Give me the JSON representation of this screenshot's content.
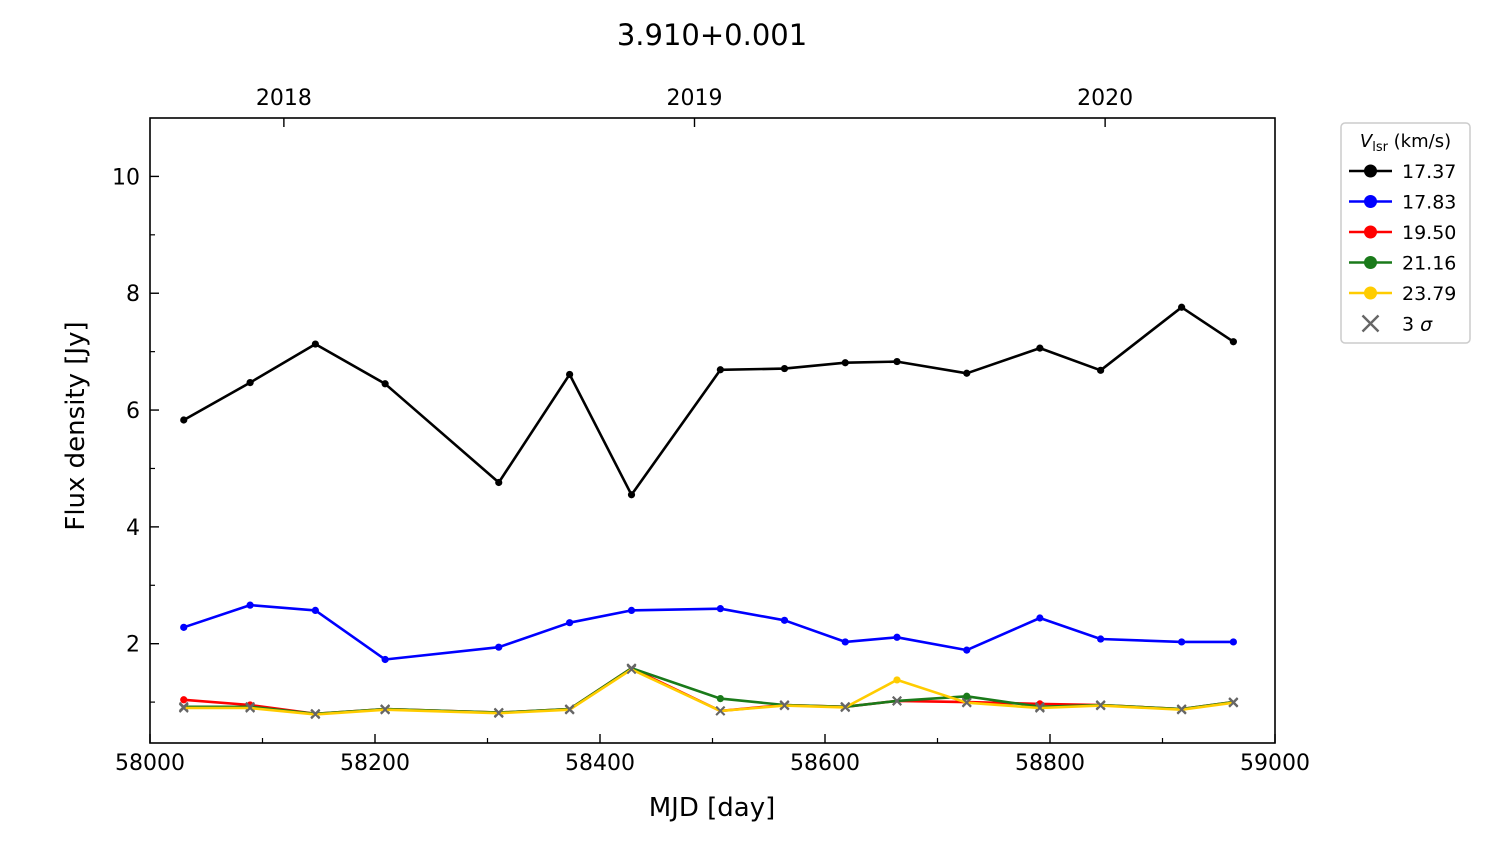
{
  "chart_data": {
    "type": "line",
    "title": "3.910+0.001",
    "xlabel": "MJD [day]",
    "ylabel": "Flux density [Jy]",
    "xlim": [
      58000,
      59000
    ],
    "ylim": [
      0.3,
      11.0
    ],
    "xticks": [
      58000,
      58200,
      58400,
      58600,
      58800,
      59000
    ],
    "xtick_labels": [
      "58000",
      "58200",
      "58400",
      "58600",
      "58800",
      "59000"
    ],
    "yticks": [
      2,
      4,
      6,
      8,
      10
    ],
    "ytick_labels": [
      "2",
      "4",
      "6",
      "8",
      "10"
    ],
    "top_axis": {
      "ticks": [
        58119,
        58484,
        58849
      ],
      "labels": [
        "2018",
        "2019",
        "2020"
      ]
    },
    "grid": false,
    "legend": {
      "placement": "outside-right-top",
      "title_main": "V",
      "title_sub": "lsr",
      "title_rest": " (km/s)",
      "sigma_label_prefix": "3 ",
      "sigma_label_symbol": "σ"
    },
    "x": [
      58030,
      58089,
      58147,
      58209,
      58310,
      58373,
      58428,
      58507,
      58564,
      58618,
      58664,
      58726,
      58791,
      58845,
      58917,
      58963
    ],
    "series": [
      {
        "name": "17.37",
        "color": "#000000",
        "values": [
          5.83,
          6.47,
          7.13,
          6.45,
          4.76,
          6.61,
          4.55,
          6.69,
          6.71,
          6.81,
          6.83,
          6.63,
          7.06,
          6.68,
          7.76,
          7.17
        ],
        "upper_limit": [
          false,
          false,
          false,
          false,
          false,
          false,
          false,
          false,
          false,
          false,
          false,
          false,
          false,
          false,
          false,
          false
        ]
      },
      {
        "name": "17.83",
        "color": "#0000ff",
        "values": [
          2.28,
          2.66,
          2.57,
          1.73,
          1.94,
          2.36,
          2.57,
          2.6,
          2.4,
          2.03,
          2.11,
          1.89,
          2.44,
          2.08,
          2.03,
          2.03
        ],
        "upper_limit": [
          false,
          false,
          false,
          false,
          false,
          false,
          false,
          false,
          false,
          false,
          false,
          false,
          false,
          false,
          false,
          false
        ]
      },
      {
        "name": "19.50",
        "color": "#ff0000",
        "values": [
          1.04,
          0.95,
          0.8,
          0.88,
          0.82,
          0.88,
          1.58,
          0.85,
          0.95,
          0.92,
          1.02,
          1.0,
          0.97,
          0.95,
          0.88,
          1.0
        ],
        "upper_limit": [
          false,
          false,
          true,
          true,
          true,
          true,
          true,
          true,
          true,
          true,
          true,
          true,
          false,
          true,
          true,
          true
        ]
      },
      {
        "name": "21.16",
        "color": "#1a7a1a",
        "values": [
          0.92,
          0.92,
          0.8,
          0.88,
          0.82,
          0.88,
          1.58,
          1.06,
          0.95,
          0.92,
          1.02,
          1.1,
          0.92,
          0.95,
          0.88,
          1.0
        ],
        "upper_limit": [
          true,
          true,
          true,
          true,
          true,
          true,
          true,
          false,
          true,
          true,
          true,
          false,
          true,
          true,
          true,
          true
        ]
      },
      {
        "name": "23.79",
        "color": "#ffcc00",
        "values": [
          0.9,
          0.9,
          0.79,
          0.87,
          0.81,
          0.87,
          1.56,
          0.85,
          0.94,
          0.91,
          1.38,
          0.99,
          0.9,
          0.94,
          0.87,
          0.99
        ],
        "upper_limit": [
          true,
          true,
          true,
          true,
          true,
          true,
          true,
          true,
          true,
          true,
          false,
          true,
          true,
          true,
          true,
          true
        ]
      }
    ]
  }
}
